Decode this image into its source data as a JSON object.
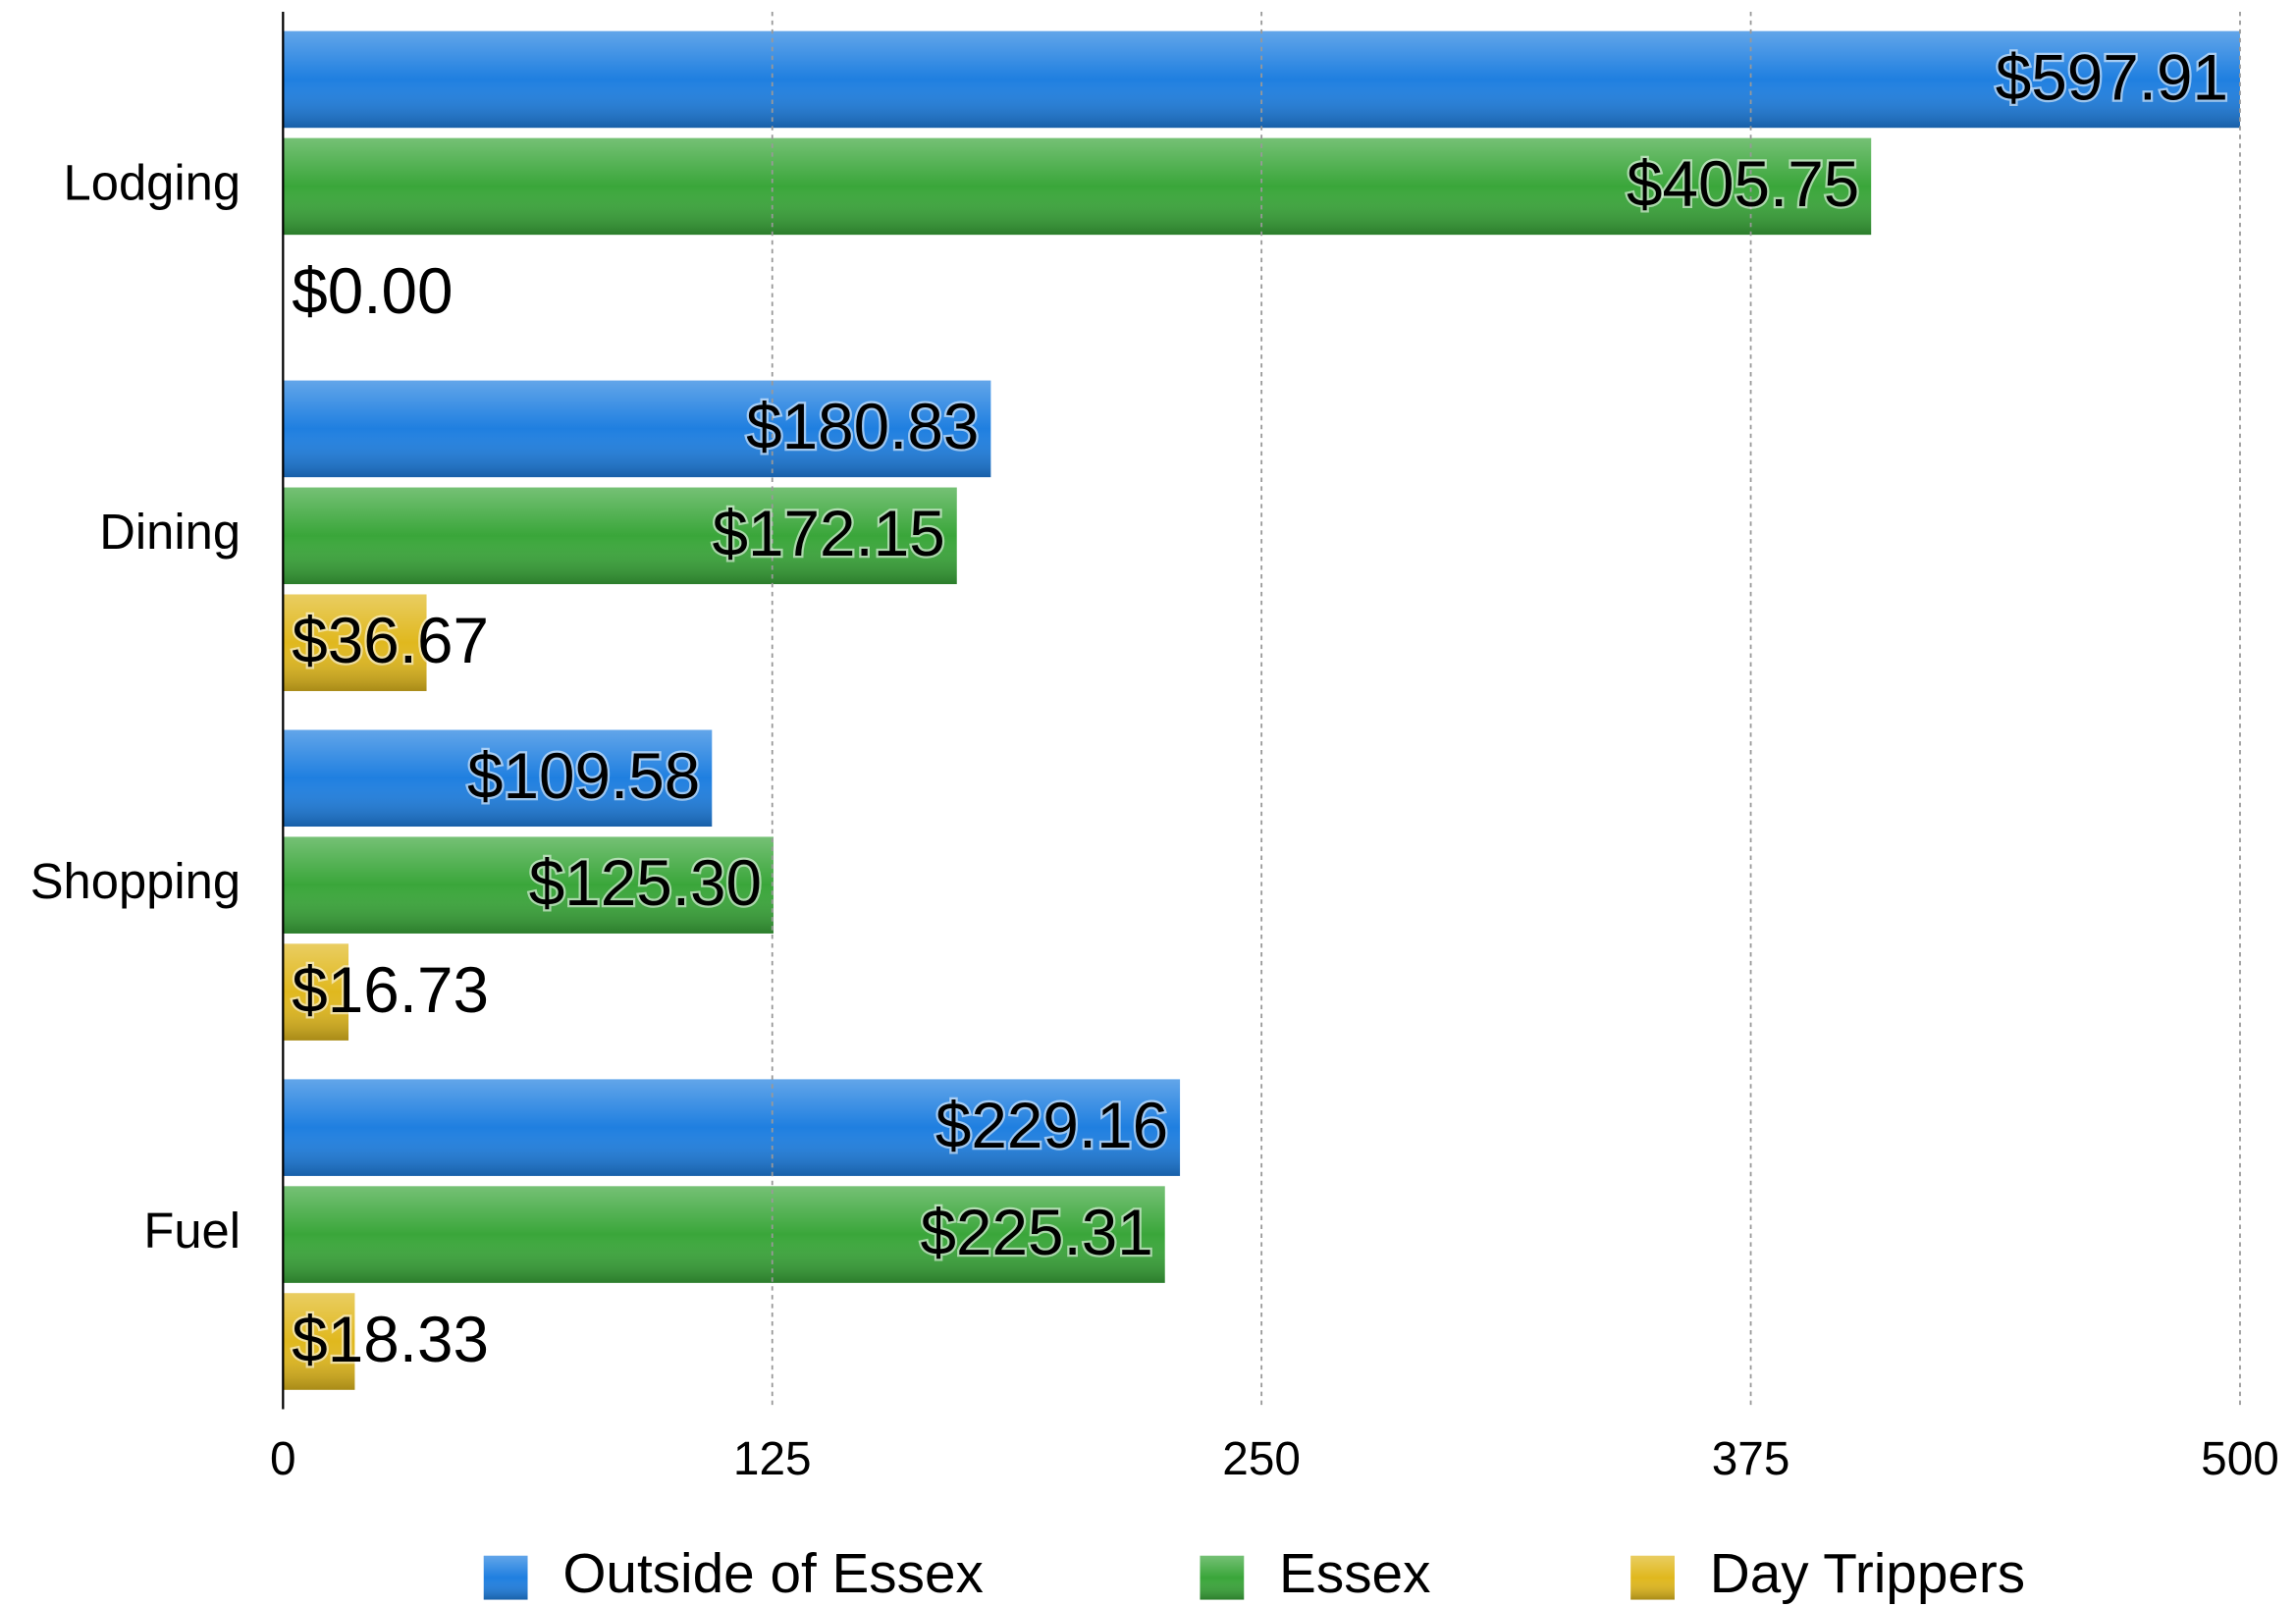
{
  "chart_data": {
    "type": "hbar",
    "categories": [
      "Lodging",
      "Dining",
      "Shopping",
      "Fuel"
    ],
    "series": [
      {
        "name": "Outside of Essex",
        "color": "#1f7fe0",
        "values": [
          597.91,
          180.83,
          109.58,
          229.16
        ],
        "value_labels": [
          "$597.91",
          "$180.83",
          "$109.58",
          "$229.16"
        ]
      },
      {
        "name": "Essex",
        "color": "#3aa63a",
        "values": [
          405.75,
          172.15,
          125.3,
          225.31
        ],
        "value_labels": [
          "$405.75",
          "$172.15",
          "$125.30",
          "$225.31"
        ]
      },
      {
        "name": "Day Trippers",
        "color": "#e0b81e",
        "values": [
          0.0,
          36.67,
          16.73,
          18.33
        ],
        "value_labels": [
          "$0.00",
          "$36.67",
          "$16.73",
          "$18.33"
        ]
      }
    ],
    "xlim": [
      0,
      500
    ],
    "xticks": [
      0,
      125,
      250,
      375,
      500
    ],
    "grid": true,
    "legend": "bottom"
  }
}
